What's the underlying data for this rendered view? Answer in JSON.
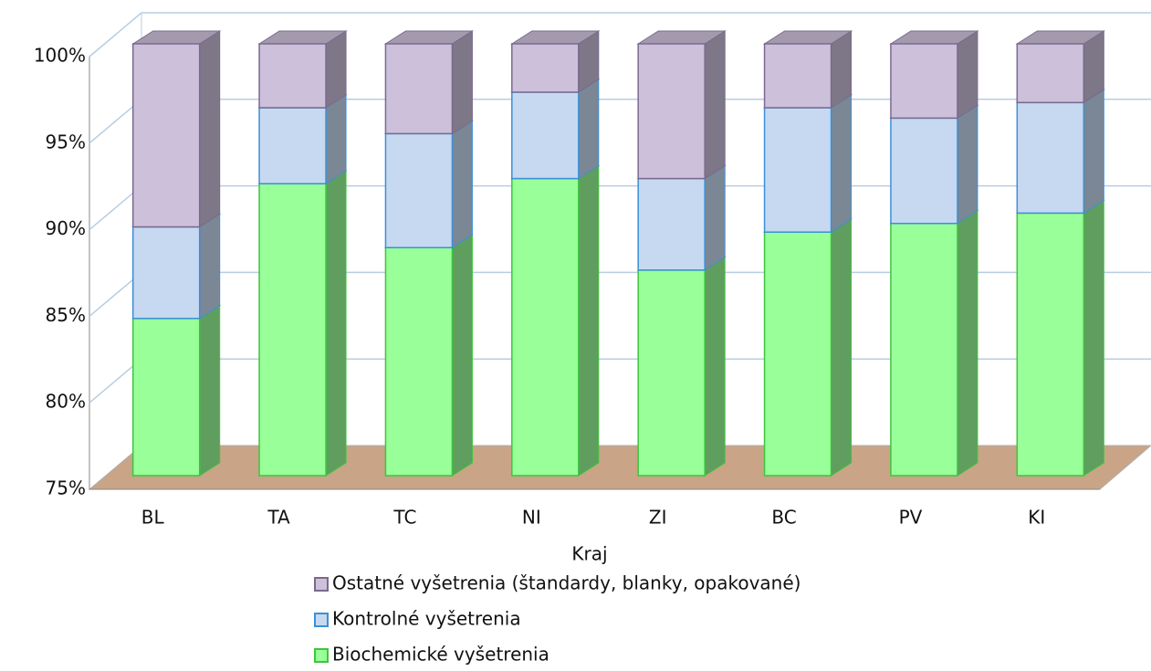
{
  "chart_data": {
    "type": "bar3d_stacked",
    "x_label": "Kraj",
    "categories": [
      "BL",
      "TA",
      "TC",
      "NI",
      "ZI",
      "BC",
      "PV",
      "KI"
    ],
    "series": [
      {
        "name": "Biochemické vyšetrenia",
        "color": "#99ff99",
        "values": [
          84.1,
          91.9,
          88.2,
          92.2,
          86.9,
          89.1,
          89.6,
          90.2
        ]
      },
      {
        "name": "Kontrolné vyšetrenia",
        "color": "#c6d9f1",
        "values": [
          5.3,
          4.4,
          6.6,
          5.0,
          5.3,
          7.2,
          6.1,
          6.4
        ]
      },
      {
        "name": "Ostatné vyšetrenia (štandardy, blanky, opakované)",
        "color": "#ccc0da",
        "values": [
          10.6,
          3.7,
          5.2,
          2.8,
          7.8,
          3.7,
          4.3,
          3.4
        ]
      }
    ],
    "ylim": [
      75,
      100
    ],
    "yticks": [
      {
        "value": 75,
        "label": "75%"
      },
      {
        "value": 80,
        "label": "80%"
      },
      {
        "value": 85,
        "label": "85%"
      },
      {
        "value": 90,
        "label": "90%"
      },
      {
        "value": 95,
        "label": "95%"
      },
      {
        "value": 100,
        "label": "100%"
      }
    ],
    "grid": true
  }
}
